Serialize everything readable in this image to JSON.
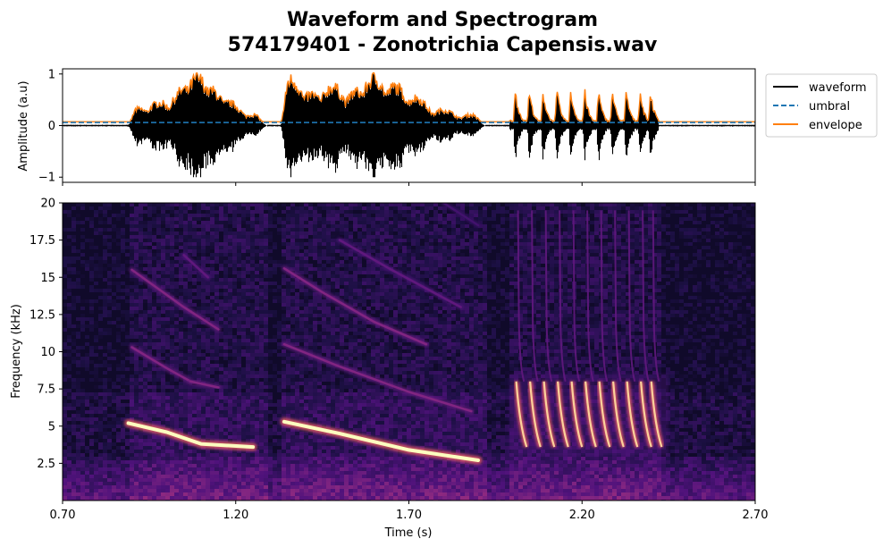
{
  "figure": {
    "title_line1": "Waveform and Spectrogram",
    "title_line2": "574179401 - Zonotrichia Capensis.wav"
  },
  "chart_data": [
    {
      "type": "line",
      "panel": "waveform",
      "ylabel": "Amplitude (a.u)",
      "xlim": [
        0.7,
        2.7
      ],
      "ylim": [
        -1.1,
        1.1
      ],
      "yticks": [
        -1,
        0,
        1
      ],
      "ytick_labels": [
        "−1",
        "0",
        "1"
      ],
      "xticks": [
        0.7,
        1.2,
        1.7,
        2.2,
        2.7
      ],
      "threshold": 0.06,
      "legend": {
        "placement": "outside-top-right",
        "entries": [
          {
            "label": "waveform",
            "color": "#000000",
            "style": "solid"
          },
          {
            "label": "umbral",
            "color": "#1f77b4",
            "style": "dashed"
          },
          {
            "label": "envelope",
            "color": "#ff7f0e",
            "style": "solid"
          }
        ]
      },
      "series": [
        {
          "name": "waveform",
          "color": "#000000"
        },
        {
          "name": "umbral",
          "color": "#1f77b4"
        },
        {
          "name": "envelope",
          "color": "#ff7f0e"
        }
      ],
      "segments": [
        {
          "start": 0.89,
          "end": 1.29,
          "peaks": [
            [
              0.92,
              0.32
            ],
            [
              0.98,
              0.45
            ],
            [
              1.05,
              0.72
            ],
            [
              1.09,
              0.95
            ],
            [
              1.13,
              0.7
            ],
            [
              1.18,
              0.45
            ],
            [
              1.25,
              0.2
            ]
          ]
        },
        {
          "start": 1.33,
          "end": 1.92,
          "peaks": [
            [
              1.36,
              0.92
            ],
            [
              1.42,
              0.62
            ],
            [
              1.48,
              0.78
            ],
            [
              1.55,
              0.68
            ],
            [
              1.6,
              0.95
            ],
            [
              1.66,
              0.78
            ],
            [
              1.72,
              0.55
            ],
            [
              1.8,
              0.3
            ],
            [
              1.88,
              0.2
            ]
          ]
        },
        {
          "start": 1.99,
          "end": 2.42,
          "syllables": [
            2.01,
            2.05,
            2.09,
            2.13,
            2.17,
            2.21,
            2.25,
            2.29,
            2.33,
            2.37,
            2.4
          ],
          "peak": 0.55
        }
      ]
    },
    {
      "type": "heatmap",
      "panel": "spectrogram",
      "xlabel": "Time (s)",
      "ylabel": "Frequency (kHz)",
      "xlim": [
        0.7,
        2.7
      ],
      "ylim": [
        0,
        20
      ],
      "xticks": [
        0.7,
        1.2,
        1.7,
        2.2,
        2.7
      ],
      "xtick_labels": [
        "0.70",
        "1.20",
        "1.70",
        "2.20",
        "2.70"
      ],
      "yticks": [
        2.5,
        5,
        7.5,
        10,
        12.5,
        15,
        17.5,
        20
      ],
      "ytick_labels": [
        "2.5",
        "5",
        "7.5",
        "10",
        "12.5",
        "15",
        "17.5",
        "20"
      ],
      "colormap": "magma",
      "traces": [
        {
          "t": [
            0.89,
            1.0,
            1.1,
            1.25
          ],
          "f": [
            5.2,
            4.6,
            3.8,
            3.6
          ],
          "intensity": 1.0
        },
        {
          "t": [
            0.9,
            1.0,
            1.07
          ],
          "f": [
            10.3,
            8.9,
            8.0
          ],
          "intensity": 0.55
        },
        {
          "t": [
            1.07,
            1.15
          ],
          "f": [
            8.0,
            7.6
          ],
          "intensity": 0.55
        },
        {
          "t": [
            0.9,
            1.05,
            1.15
          ],
          "f": [
            15.5,
            13.0,
            11.5
          ],
          "intensity": 0.55
        },
        {
          "t": [
            1.05,
            1.12
          ],
          "f": [
            16.5,
            15.0
          ],
          "intensity": 0.45
        },
        {
          "t": [
            1.34,
            1.5,
            1.7,
            1.9
          ],
          "f": [
            5.3,
            4.5,
            3.4,
            2.7
          ],
          "intensity": 1.0
        },
        {
          "t": [
            1.34,
            1.5,
            1.7,
            1.88
          ],
          "f": [
            10.5,
            9.0,
            7.3,
            6.0
          ],
          "intensity": 0.55
        },
        {
          "t": [
            1.34,
            1.45,
            1.6,
            1.75
          ],
          "f": [
            15.6,
            14.0,
            12.0,
            10.5
          ],
          "intensity": 0.55
        },
        {
          "t": [
            1.5,
            1.65,
            1.85
          ],
          "f": [
            17.5,
            15.5,
            13.0
          ],
          "intensity": 0.45
        },
        {
          "t": [
            1.8,
            1.9
          ],
          "f": [
            20.0,
            18.5
          ],
          "intensity": 0.35
        }
      ]
    }
  ]
}
